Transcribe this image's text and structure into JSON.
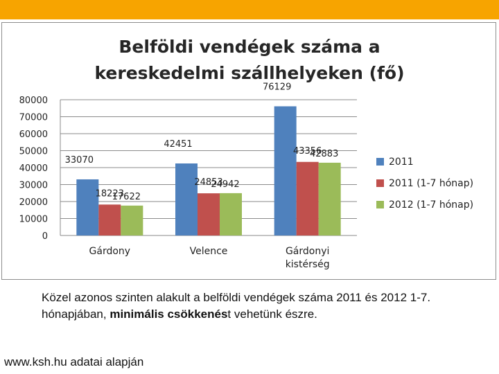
{
  "caption": {
    "part1": "Közel azonos szinten alakult a belföldi vendégek száma 2011 és 2012 1-7. hónapjában, ",
    "bold": "minimális csökkenés",
    "part2": "t vehetünk észre."
  },
  "source": "www.ksh.hu adatai alapján",
  "chart_data": {
    "type": "bar",
    "title_lines": [
      "Belföldi vendégek száma a",
      "kereskedelmi szállhelyeken (fő)"
    ],
    "categories": [
      [
        "Gárdony"
      ],
      [
        "Velence"
      ],
      [
        "Gárdonyi",
        "kistérség"
      ]
    ],
    "series": [
      {
        "name": "2011",
        "color": "#4f81bd",
        "values": [
          33070,
          42451,
          76129
        ]
      },
      {
        "name": "2011 (1-7 hónap)",
        "color": "#c0504d",
        "values": [
          18223,
          24853,
          43356
        ]
      },
      {
        "name": "2012 (1-7 hónap)",
        "color": "#9bbb59",
        "values": [
          17622,
          24942,
          42883
        ]
      }
    ],
    "ylim": [
      0,
      80000
    ],
    "yticks": [
      0,
      10000,
      20000,
      30000,
      40000,
      50000,
      60000,
      70000,
      80000
    ],
    "grid": true,
    "legend": "right"
  }
}
